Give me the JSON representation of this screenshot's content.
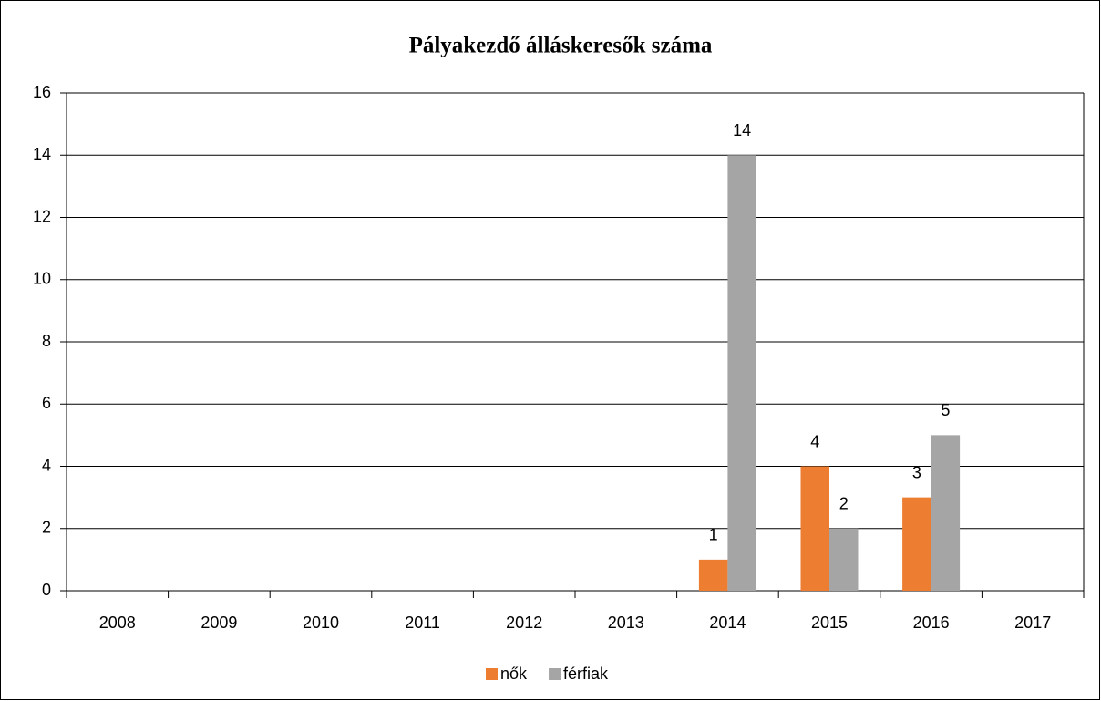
{
  "chart_data": {
    "type": "bar",
    "title": "Pályakezdő álláskeresők száma",
    "categories": [
      "2008",
      "2009",
      "2010",
      "2011",
      "2012",
      "2013",
      "2014",
      "2015",
      "2016",
      "2017"
    ],
    "series": [
      {
        "name": "nők",
        "color": "#ed7d31",
        "values": [
          null,
          null,
          null,
          null,
          null,
          null,
          1,
          4,
          3,
          null
        ]
      },
      {
        "name": "férfiak",
        "color": "#a5a5a5",
        "values": [
          null,
          null,
          null,
          null,
          null,
          null,
          14,
          2,
          5,
          null
        ]
      }
    ],
    "ylim": [
      0,
      16
    ],
    "yticks": [
      0,
      2,
      4,
      6,
      8,
      10,
      12,
      14,
      16
    ],
    "grid": true,
    "data_labels": true,
    "legend": "bottom"
  }
}
